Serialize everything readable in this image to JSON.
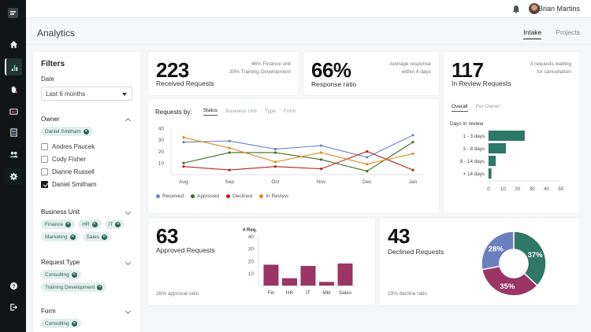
{
  "app": {
    "title": "Analytics"
  },
  "nav": {
    "items": [
      {
        "name": "home",
        "label": "Home"
      },
      {
        "name": "analytics",
        "label": "Analytics",
        "active": true
      },
      {
        "name": "requests",
        "label": "Requests"
      },
      {
        "name": "cards",
        "label": "Cards"
      },
      {
        "name": "documents",
        "label": "Documents"
      },
      {
        "name": "users",
        "label": "Users"
      },
      {
        "name": "settings",
        "label": "Settings"
      }
    ],
    "bottom": [
      {
        "name": "help",
        "label": "Help"
      },
      {
        "name": "logout",
        "label": "Logout"
      }
    ]
  },
  "topbar": {
    "user_name": "Brian Martins"
  },
  "header": {
    "tabs": [
      {
        "label": "Intake",
        "active": true
      },
      {
        "label": "Projects",
        "active": false
      }
    ]
  },
  "filters": {
    "title": "Filters",
    "date": {
      "label": "Date",
      "value": "Last 6 months"
    },
    "owner": {
      "label": "Owner",
      "chips": [
        "Daniel Smitham"
      ],
      "options": [
        {
          "label": "Andres Paucek",
          "checked": false
        },
        {
          "label": "Cody Fisher",
          "checked": false
        },
        {
          "label": "Dianne Russell",
          "checked": false
        },
        {
          "label": "Daniel Smitham",
          "checked": true
        }
      ]
    },
    "business_unit": {
      "label": "Business Unit",
      "chips": [
        "Finance",
        "HR",
        "IT",
        "Marketing",
        "Sales"
      ]
    },
    "request_type": {
      "label": "Request Type",
      "chips": [
        "Consulting",
        "Training Development"
      ]
    },
    "form": {
      "label": "Form",
      "chips": [
        "Consulting"
      ]
    }
  },
  "kpis": {
    "received": {
      "value": "223",
      "label": "Received Requests",
      "note_line1": "46% Finance unit",
      "note_line2": "30% Training Development"
    },
    "response": {
      "value": "66%",
      "label": "Response ratio",
      "note_line1": "Average response",
      "note_line2": "within 4 days"
    },
    "in_review": {
      "value": "117",
      "label": "In Review Requests",
      "note_line1": "3 requests waiting",
      "note_line2": "for cancellation"
    },
    "approved": {
      "value": "63",
      "label": "Approved Requests",
      "footer": "28% approval ratio"
    },
    "declined": {
      "value": "43",
      "label": "Declined Requests",
      "footer": "19% decline ratio"
    }
  },
  "requests_by": {
    "title": "Requests by:",
    "tabs": [
      {
        "label": "Status",
        "active": true
      },
      {
        "label": "Business Unit",
        "active": false
      },
      {
        "label": "Type",
        "active": false
      },
      {
        "label": "Form",
        "active": false
      }
    ]
  },
  "review_tabs": [
    {
      "label": "Overall",
      "active": true
    },
    {
      "label": "Per Owner",
      "active": false
    }
  ],
  "colors": {
    "received": "#6b82c4",
    "approved": "#3f6d1f",
    "declined": "#b8231b",
    "in_review": "#e08a1e",
    "teal": "#2f7766",
    "maroon": "#9a3565",
    "blue": "#6b7fbf"
  },
  "chart_data": [
    {
      "id": "requests-by-status",
      "type": "line",
      "x": [
        "Aug",
        "Sep",
        "Oct",
        "Nov",
        "Dec",
        "Jan"
      ],
      "series": [
        {
          "name": "Received",
          "values": [
            28,
            29,
            22,
            25,
            15,
            34
          ]
        },
        {
          "name": "Approved",
          "values": [
            10,
            19,
            19,
            13,
            3,
            28
          ]
        },
        {
          "name": "Declined",
          "values": [
            7,
            4,
            7,
            5,
            20,
            4
          ]
        },
        {
          "name": "In Review",
          "values": [
            32,
            23,
            11,
            19,
            9,
            18
          ]
        }
      ],
      "yticks": [
        10,
        20,
        30,
        40
      ],
      "ylim": [
        0,
        42
      ],
      "legend": "bottom-left",
      "grid": false
    },
    {
      "id": "days-in-review",
      "type": "bar",
      "orientation": "horizontal",
      "title": "Days in review",
      "categories": [
        "1 - 3 days",
        "3 - 8 days",
        "8 - 14 days",
        "+ 14 days"
      ],
      "values": [
        25,
        12,
        5,
        2
      ],
      "xticks": [
        0,
        10,
        20,
        30,
        40,
        50
      ],
      "xlim": [
        0,
        55
      ]
    },
    {
      "id": "approved-by-unit",
      "type": "bar",
      "ylabel": "# Req.",
      "categories": [
        "Fin",
        "HR",
        "IT",
        "Mkt",
        "Sales"
      ],
      "values": [
        17,
        6,
        16,
        3,
        18
      ],
      "yticks": [
        10,
        20,
        30,
        40
      ],
      "ylim": [
        0,
        41
      ]
    },
    {
      "id": "declined-share",
      "type": "pie",
      "donut": true,
      "labels": [
        "37%",
        "35%",
        "28%"
      ],
      "values": [
        37,
        35,
        28
      ]
    }
  ]
}
